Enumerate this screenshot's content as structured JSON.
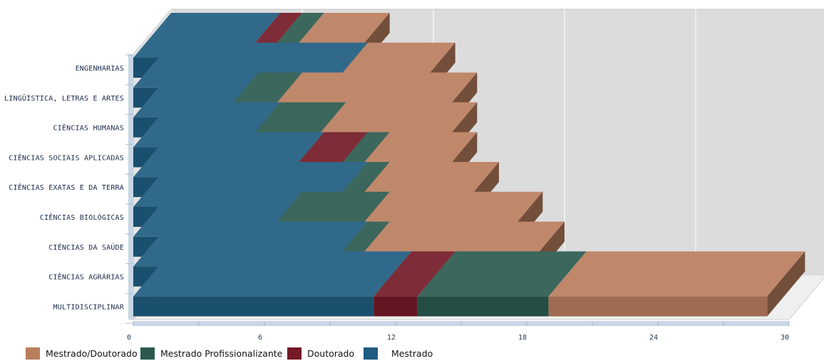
{
  "chart_data": {
    "type": "bar",
    "orientation": "horizontal",
    "stacked": true,
    "three_d": true,
    "categories": [
      "ENGENHARIAS",
      "LINGÜÍSTICA, LETRAS E ARTES",
      "CIÊNCIAS HUMANAS",
      "CIÊNCIAS SOCIAIS APLICADAS",
      "CIÊNCIAS EXATAS E DA TERRA",
      "CIÊNCIAS BIOLÓGICAS",
      "CIÊNCIAS DA SAÚDE",
      "CIÊNCIAS AGRÁRIAS",
      "MULTIDISCIPLINAR"
    ],
    "series": [
      {
        "name": "Mestrado",
        "color": "#1f5c80",
        "values": [
          5,
          9,
          4,
          5,
          7,
          9,
          6,
          9,
          11
        ]
      },
      {
        "name": "Doutorado",
        "color": "#731a26",
        "values": [
          1,
          0,
          0,
          0,
          2,
          0,
          0,
          0,
          2
        ]
      },
      {
        "name": "Mestrado Profissionalizante",
        "color": "#2a5a4e",
        "values": [
          1,
          0,
          2,
          3,
          1,
          1,
          4,
          1,
          6
        ]
      },
      {
        "name": "Mestrado/Doutorado",
        "color": "#b97e5e",
        "values": [
          3,
          4,
          8,
          6,
          4,
          5,
          7,
          8,
          10
        ]
      }
    ],
    "legend_order": [
      "Mestrado/Doutorado",
      "Mestrado Profissionalizante",
      "Doutorado",
      "Mestrado"
    ],
    "xlim": [
      0,
      30
    ],
    "xticks": [
      0,
      6,
      12,
      18,
      24,
      30
    ],
    "grid": true,
    "legend_position": "bottom-left"
  }
}
